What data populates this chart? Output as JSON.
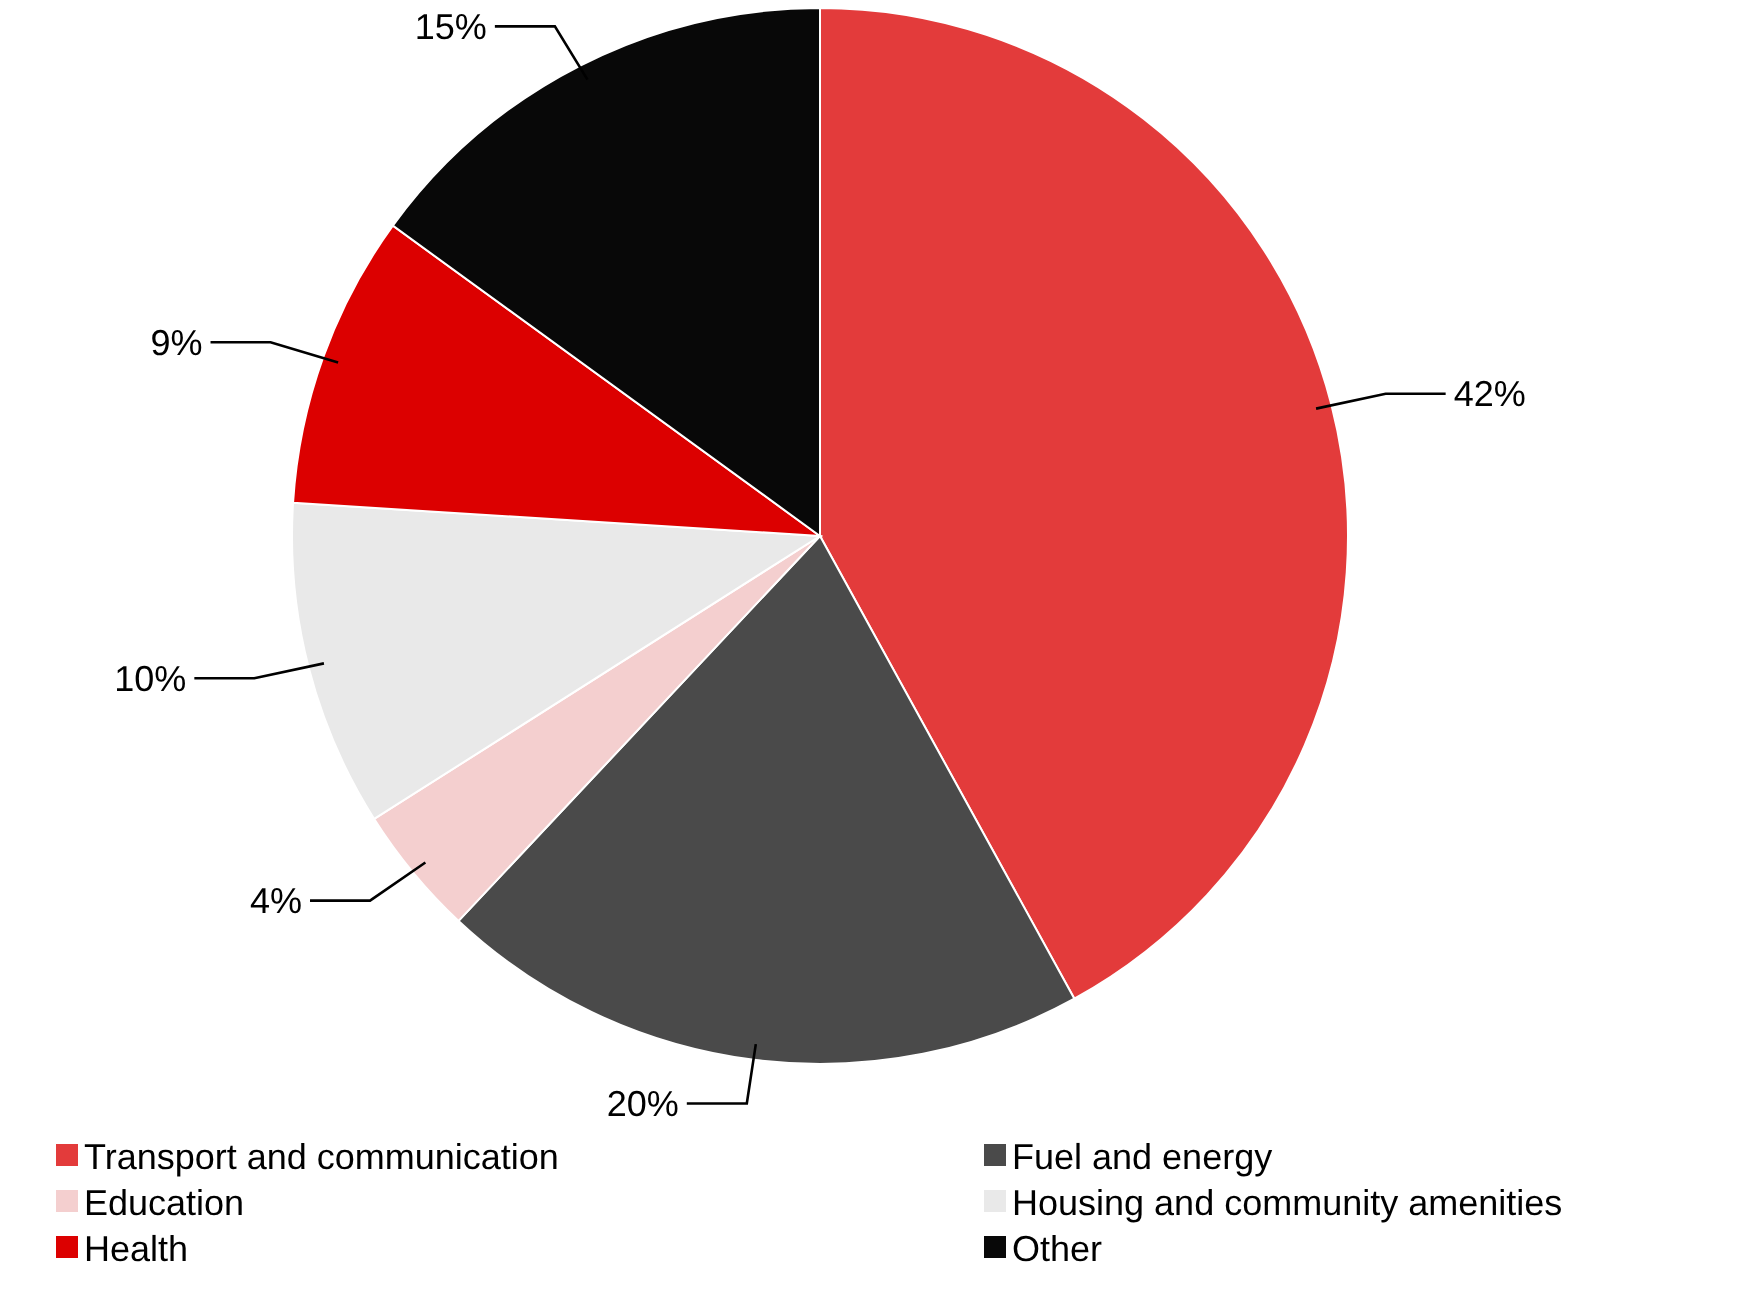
{
  "chart_data": {
    "type": "pie",
    "categories": [
      "Transport and communication",
      "Fuel and energy",
      "Education",
      "Housing and community amenities",
      "Health",
      "Other"
    ],
    "values": [
      42,
      20,
      4,
      10,
      9,
      15
    ],
    "colors": [
      "#e33b3b",
      "#4a4a4a",
      "#f4cfcf",
      "#e9e9e9",
      "#dc0000",
      "#080808"
    ],
    "value_labels": [
      "42%",
      "20%",
      "4%",
      "10%",
      "9%",
      "15%"
    ],
    "legend": "bottom"
  }
}
